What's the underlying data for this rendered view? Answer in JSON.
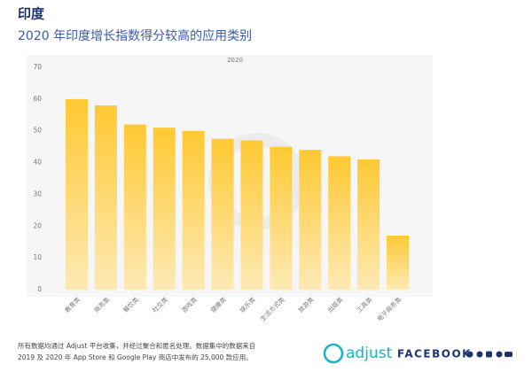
{
  "chart_data": {
    "type": "bar",
    "title": "印度",
    "subtitle": "2020 年印度增长指数得分较高的应用类别",
    "categories": [
      "教育类",
      "商务类",
      "餐饮类",
      "社交类",
      "游戏类",
      "健康类",
      "娱乐类",
      "生活方式类",
      "旅游类",
      "出版类",
      "工具类",
      "电子商务类"
    ],
    "series": [
      {
        "name": "2020",
        "color": "#ffc933",
        "values": [
          60,
          58,
          52,
          51,
          50,
          47.5,
          47,
          45,
          44,
          42,
          41,
          17
        ]
      }
    ],
    "ylim": [
      0,
      70
    ],
    "yticks": [
      0,
      10,
      20,
      30,
      40,
      50,
      60,
      70
    ],
    "grid": false
  },
  "footer": {
    "note": [
      "所有数据均通过 Adjust 平台收集，并经过聚合和匿名处理。数据集中的数据来自",
      "2019 及 2020 年 App Store 和 Google Play 商店中发布的 25,000 款应用。"
    ],
    "brands": [
      "adjust",
      "FACEBOOK"
    ]
  }
}
